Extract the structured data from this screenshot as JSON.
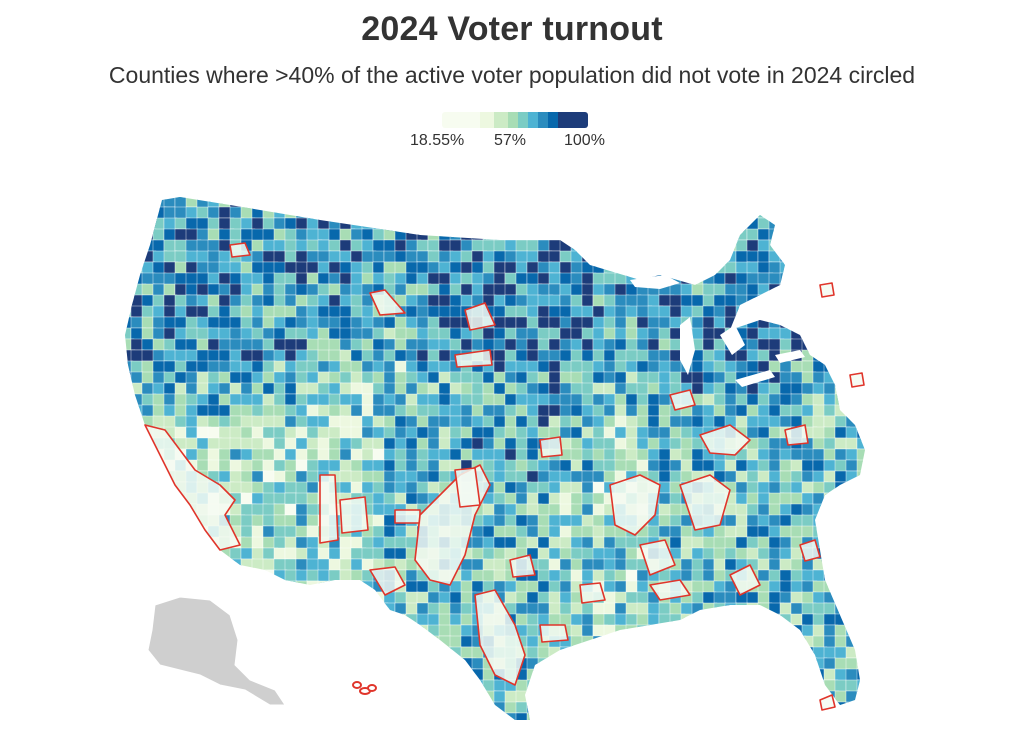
{
  "title": "2024 Voter turnout",
  "subtitle": "Counties where >40% of the active voter population did not vote in 2024 circled",
  "legend": {
    "min_label": "18.55%",
    "mid_label": "57%",
    "max_label": "100%",
    "colors": [
      "#f7fcf0",
      "#edf8e0",
      "#ccebc5",
      "#a8ddb5",
      "#7bccc4",
      "#4eb3d3",
      "#2b8cbe",
      "#0868ac",
      "#1d3c7a"
    ],
    "highlight_outline_color": "#e0352b"
  },
  "map": {
    "land_fill": "#eaf5ea",
    "alaska_fill": "#cfcfcf",
    "state_border": "#ffffff"
  }
}
